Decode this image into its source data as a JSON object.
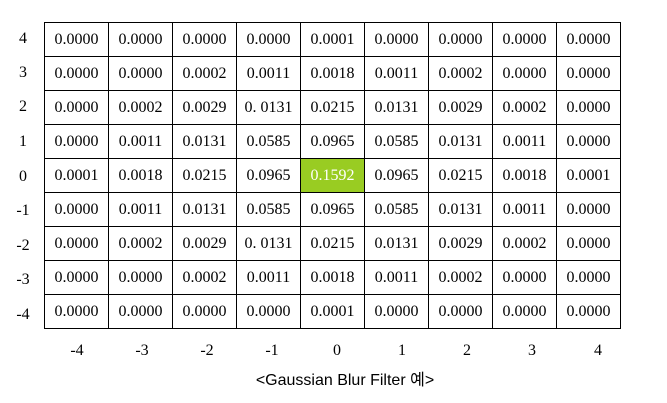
{
  "row_labels": [
    "4",
    "3",
    "2",
    "1",
    "0",
    "-1",
    "-2",
    "-3",
    "-4"
  ],
  "col_labels": [
    "-4",
    "-3",
    "-2",
    "-1",
    "0",
    "1",
    "2",
    "3",
    "4"
  ],
  "highlight_color": "#99cc22",
  "rows": [
    [
      "0.0000",
      "0.0000",
      "0.0000",
      "0.0000",
      "0.0001",
      "0.0000",
      "0.0000",
      "0.0000",
      "0.0000"
    ],
    [
      "0.0000",
      "0.0000",
      "0.0002",
      "0.0011",
      "0.0018",
      "0.0011",
      "0.0002",
      "0.0000",
      "0.0000"
    ],
    [
      "0.0000",
      "0.0002",
      "0.0029",
      "0. 0131",
      "0.0215",
      "0.0131",
      "0.0029",
      "0.0002",
      "0.0000"
    ],
    [
      "0.0000",
      "0.0011",
      "0.0131",
      "0.0585",
      "0.0965",
      "0.0585",
      "0.0131",
      "0.0011",
      "0.0000"
    ],
    [
      "0.0001",
      "0.0018",
      "0.0215",
      "0.0965",
      "0.1592",
      "0.0965",
      "0.0215",
      "0.0018",
      "0.0001"
    ],
    [
      "0.0000",
      "0.0011",
      "0.0131",
      "0.0585",
      "0.0965",
      "0.0585",
      "0.0131",
      "0.0011",
      "0.0000"
    ],
    [
      "0.0000",
      "0.0002",
      "0.0029",
      "0. 0131",
      "0.0215",
      "0.0131",
      "0.0029",
      "0.0002",
      "0.0000"
    ],
    [
      "0.0000",
      "0.0000",
      "0.0002",
      "0.0011",
      "0.0018",
      "0.0011",
      "0.0002",
      "0.0000",
      "0.0000"
    ],
    [
      "0.0000",
      "0.0000",
      "0.0000",
      "0.0000",
      "0.0001",
      "0.0000",
      "0.0000",
      "0.0000",
      "0.0000"
    ]
  ],
  "caption": "<Gaussian Blur Filter 예>"
}
